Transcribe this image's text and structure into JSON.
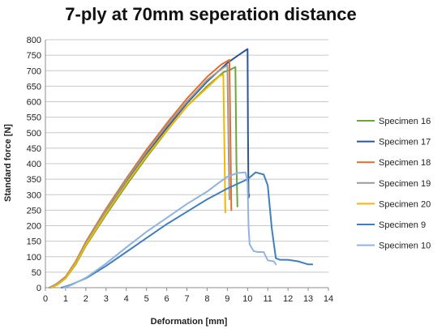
{
  "chart_data": {
    "type": "line",
    "title": "7-ply at 70mm seperation distance",
    "xlabel": "Deformation [mm]",
    "ylabel": "Standard force [N]",
    "xlim": [
      0,
      14
    ],
    "ylim": [
      0,
      800
    ],
    "xticks": [
      0,
      1,
      2,
      3,
      4,
      5,
      6,
      7,
      8,
      9,
      10,
      11,
      12,
      13,
      14
    ],
    "yticks": [
      0,
      50,
      100,
      150,
      200,
      250,
      300,
      350,
      400,
      450,
      500,
      550,
      600,
      650,
      700,
      750,
      800
    ],
    "grid": "horizontal",
    "legend_position": "right",
    "series": [
      {
        "name": "Specimen 16",
        "color": "#6aa73c",
        "points": [
          [
            0.3,
            0
          ],
          [
            0.6,
            10
          ],
          [
            1,
            30
          ],
          [
            1.5,
            75
          ],
          [
            2,
            135
          ],
          [
            3,
            235
          ],
          [
            4,
            330
          ],
          [
            5,
            420
          ],
          [
            6,
            505
          ],
          [
            7,
            585
          ],
          [
            8,
            650
          ],
          [
            8.8,
            695
          ],
          [
            9.2,
            705
          ],
          [
            9.4,
            712
          ],
          [
            9.45,
            400
          ],
          [
            9.5,
            262
          ]
        ]
      },
      {
        "name": "Specimen 17",
        "color": "#2d5597",
        "points": [
          [
            0.2,
            0
          ],
          [
            0.5,
            10
          ],
          [
            1,
            32
          ],
          [
            1.5,
            80
          ],
          [
            2,
            140
          ],
          [
            3,
            245
          ],
          [
            4,
            342
          ],
          [
            5,
            432
          ],
          [
            6,
            515
          ],
          [
            7,
            595
          ],
          [
            8,
            665
          ],
          [
            9,
            725
          ],
          [
            9.5,
            748
          ],
          [
            10,
            770
          ],
          [
            10.02,
            500
          ],
          [
            10.05,
            290
          ],
          [
            10.08,
            300
          ]
        ]
      },
      {
        "name": "Specimen 18",
        "color": "#e46c2a",
        "points": [
          [
            0.2,
            0
          ],
          [
            0.5,
            10
          ],
          [
            1,
            35
          ],
          [
            1.5,
            85
          ],
          [
            2,
            148
          ],
          [
            3,
            255
          ],
          [
            4,
            352
          ],
          [
            5,
            445
          ],
          [
            6,
            530
          ],
          [
            7,
            610
          ],
          [
            8,
            680
          ],
          [
            8.7,
            720
          ],
          [
            9.1,
            735
          ],
          [
            9.15,
            500
          ],
          [
            9.2,
            250
          ]
        ]
      },
      {
        "name": "Specimen 19",
        "color": "#9a9a9a",
        "points": [
          [
            0.2,
            0
          ],
          [
            0.5,
            10
          ],
          [
            1,
            33
          ],
          [
            1.5,
            82
          ],
          [
            2,
            144
          ],
          [
            3,
            250
          ],
          [
            4,
            347
          ],
          [
            5,
            438
          ],
          [
            6,
            522
          ],
          [
            7,
            600
          ],
          [
            8,
            670
          ],
          [
            8.7,
            705
          ],
          [
            9,
            718
          ],
          [
            9.05,
            500
          ],
          [
            9.1,
            285
          ]
        ]
      },
      {
        "name": "Specimen 20",
        "color": "#f2b705",
        "points": [
          [
            0.3,
            0
          ],
          [
            0.6,
            10
          ],
          [
            1,
            30
          ],
          [
            1.5,
            78
          ],
          [
            2,
            138
          ],
          [
            3,
            240
          ],
          [
            4,
            336
          ],
          [
            5,
            425
          ],
          [
            6,
            507
          ],
          [
            7,
            585
          ],
          [
            8,
            645
          ],
          [
            8.6,
            682
          ],
          [
            8.8,
            688
          ],
          [
            8.85,
            480
          ],
          [
            8.9,
            243
          ]
        ]
      },
      {
        "name": "Specimen 9",
        "color": "#3f7fbd",
        "points": [
          [
            0.8,
            0
          ],
          [
            1.2,
            8
          ],
          [
            2,
            30
          ],
          [
            3,
            70
          ],
          [
            4,
            115
          ],
          [
            5,
            160
          ],
          [
            6,
            205
          ],
          [
            7,
            245
          ],
          [
            8,
            285
          ],
          [
            9,
            320
          ],
          [
            10,
            350
          ],
          [
            10.4,
            372
          ],
          [
            10.8,
            365
          ],
          [
            11,
            330
          ],
          [
            11.2,
            190
          ],
          [
            11.4,
            95
          ],
          [
            11.6,
            90
          ],
          [
            12,
            90
          ],
          [
            12.5,
            85
          ],
          [
            13,
            75
          ],
          [
            13.2,
            75
          ]
        ]
      },
      {
        "name": "Specimen 10",
        "color": "#91b3e0",
        "points": [
          [
            0.9,
            0
          ],
          [
            1.2,
            6
          ],
          [
            2,
            32
          ],
          [
            3,
            78
          ],
          [
            4,
            130
          ],
          [
            5,
            180
          ],
          [
            6,
            225
          ],
          [
            7,
            270
          ],
          [
            8,
            310
          ],
          [
            8.5,
            335
          ],
          [
            9,
            358
          ],
          [
            9.5,
            370
          ],
          [
            9.9,
            372
          ],
          [
            10,
            340
          ],
          [
            10.05,
            200
          ],
          [
            10.1,
            140
          ],
          [
            10.3,
            118
          ],
          [
            10.5,
            115
          ],
          [
            10.8,
            115
          ],
          [
            11,
            88
          ],
          [
            11.3,
            85
          ],
          [
            11.4,
            75
          ]
        ]
      }
    ]
  }
}
